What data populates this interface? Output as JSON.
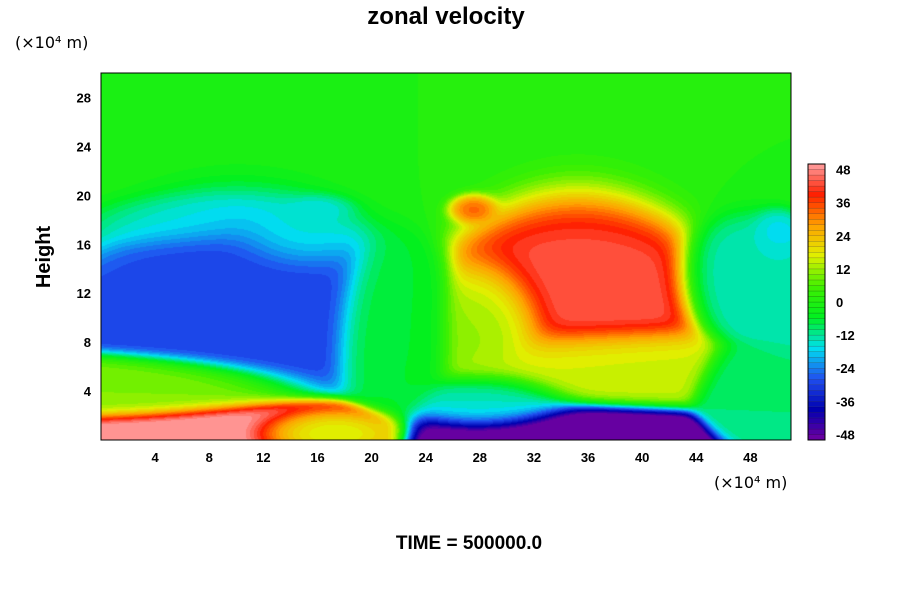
{
  "chart_data": {
    "type": "heatmap",
    "title": "zonal velocity",
    "ylabel": "Height",
    "x_unit_label": "(×10⁴ m)",
    "y_unit_label": "(×10⁴ m)",
    "footer": "TIME = 500000.0",
    "xlim": [
      0,
      51
    ],
    "ylim": [
      0,
      30
    ],
    "x_ticks": [
      4,
      8,
      12,
      16,
      20,
      24,
      28,
      32,
      36,
      40,
      44,
      48
    ],
    "y_ticks": [
      4,
      8,
      12,
      16,
      20,
      24,
      28
    ],
    "colorbar": {
      "min": -50,
      "max": 50,
      "ticks": [
        48,
        36,
        24,
        12,
        0,
        -12,
        -24,
        -36,
        -48
      ],
      "levels": 50,
      "colormap": "blue-cyan-green-yellow-red-pink",
      "stops": [
        "#7000a0",
        "#0000b0",
        "#2050f0",
        "#00e0f0",
        "#00f020",
        "#40f000",
        "#e0f000",
        "#ffa000",
        "#ff2000",
        "#ffa0a0"
      ]
    },
    "grid": false,
    "legend": "colorbar-right",
    "features": [
      {
        "x": 0,
        "y": 25,
        "sx": 60,
        "sy": 5,
        "value": 0
      },
      {
        "x": 10,
        "y": 14,
        "sx": 6,
        "sy": 5,
        "value": -30
      },
      {
        "x": 7,
        "y": 18,
        "sx": 5,
        "sy": 1.5,
        "value": -14
      },
      {
        "x": 14,
        "y": 17,
        "sx": 3,
        "sy": 2,
        "value": -12
      },
      {
        "x": 16,
        "y": 19,
        "sx": 1.8,
        "sy": 0.8,
        "value": -18
      },
      {
        "x": 4,
        "y": 4,
        "sx": 5,
        "sy": 1.5,
        "value": 10
      },
      {
        "x": 8,
        "y": 0.5,
        "sx": 6,
        "sy": 1.5,
        "value": 54
      },
      {
        "x": 15,
        "y": 0.5,
        "sx": 3,
        "sy": 1,
        "value": 10
      },
      {
        "x": 35,
        "y": 14,
        "sx": 5,
        "sy": 5,
        "value": 44
      },
      {
        "x": 29,
        "y": 10,
        "sx": 2.5,
        "sy": 3,
        "value": 10
      },
      {
        "x": 27.5,
        "y": 19,
        "sx": 1.2,
        "sy": 0.8,
        "value": 38
      },
      {
        "x": 36,
        "y": 6,
        "sx": 5,
        "sy": 2,
        "value": 14
      },
      {
        "x": 34,
        "y": 0,
        "sx": 5,
        "sy": 1.8,
        "value": -60
      },
      {
        "x": 30,
        "y": 3,
        "sx": 3,
        "sy": 1.5,
        "value": -14
      },
      {
        "x": 48,
        "y": 14,
        "sx": 3,
        "sy": 3,
        "value": -14
      },
      {
        "x": 50,
        "y": 17,
        "sx": 1.2,
        "sy": 1.2,
        "value": -18
      },
      {
        "x": 48,
        "y": 4,
        "sx": 2,
        "sy": 2,
        "value": -10
      },
      {
        "x": 22,
        "y": 11,
        "sx": 2.5,
        "sy": 4,
        "value": -6
      }
    ]
  }
}
